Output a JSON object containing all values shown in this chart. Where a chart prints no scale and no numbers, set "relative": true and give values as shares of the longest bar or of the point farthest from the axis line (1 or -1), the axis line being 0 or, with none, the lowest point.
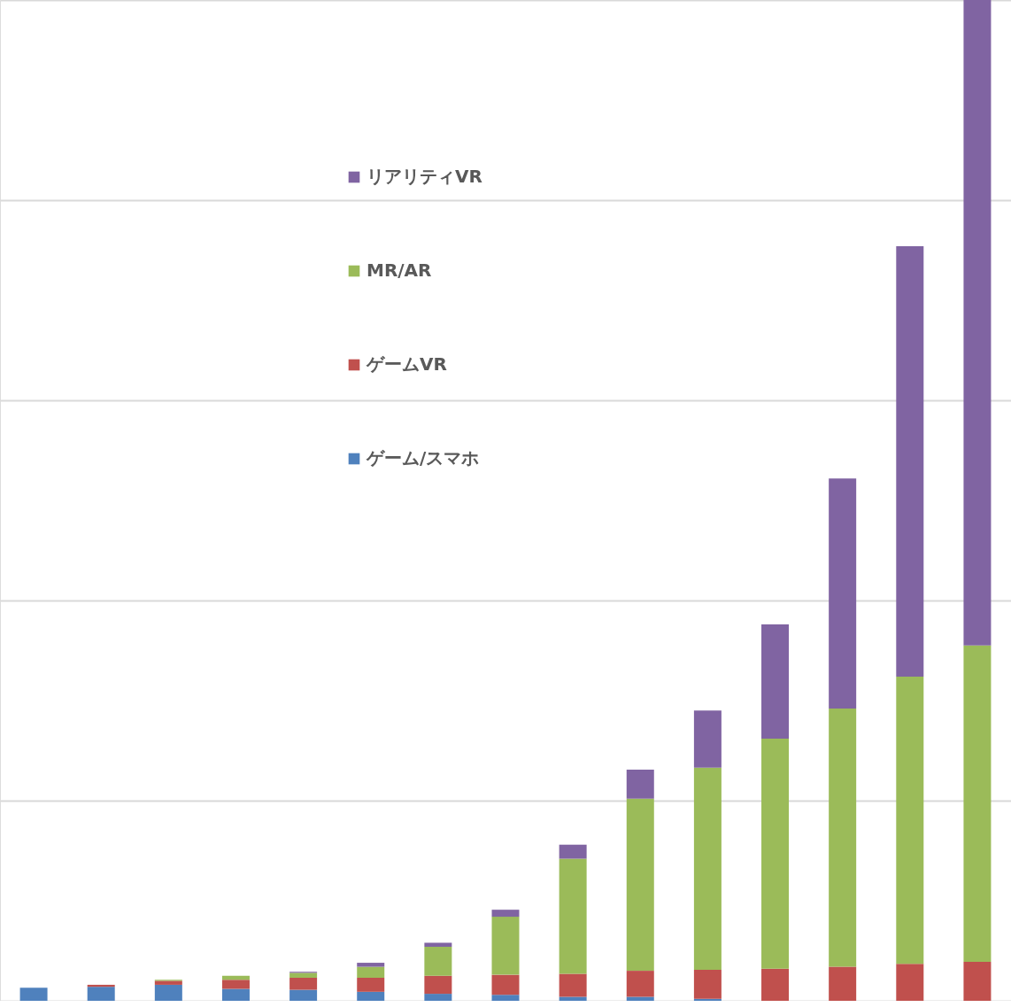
{
  "chart_data": {
    "type": "bar",
    "stacked": true,
    "relative": true,
    "grid": "y",
    "legend": "top",
    "categories": [
      null,
      null,
      null,
      null,
      null,
      null,
      null,
      null,
      null,
      null,
      null,
      null,
      null,
      null,
      null
    ],
    "series": [
      {
        "name": "ゲーム/スマホ",
        "color": "#4f81bd",
        "values": [
          0.013,
          0.014,
          0.016,
          0.012,
          0.011,
          0.009,
          0.007,
          0.006,
          0.004,
          0.004,
          0.002,
          0,
          0,
          0,
          0
        ]
      },
      {
        "name": "ゲームVR",
        "color": "#c0504d",
        "values": [
          0,
          0.002,
          0.004,
          0.009,
          0.012,
          0.014,
          0.018,
          0.02,
          0.023,
          0.026,
          0.029,
          0.032,
          0.034,
          0.037,
          0.039
        ]
      },
      {
        "name": "MR/AR",
        "color": "#9bbb59",
        "values": [
          0,
          0,
          0.001,
          0.004,
          0.005,
          0.011,
          0.029,
          0.058,
          0.115,
          0.172,
          0.202,
          0.23,
          0.258,
          0.287,
          0.316
        ]
      },
      {
        "name": "リアリティVR",
        "color": "#8064a2",
        "values": [
          0,
          0,
          0,
          0,
          0.001,
          0.004,
          0.004,
          0.007,
          0.014,
          0.029,
          0.057,
          0.114,
          0.23,
          0.43,
          0.645
        ]
      }
    ]
  }
}
